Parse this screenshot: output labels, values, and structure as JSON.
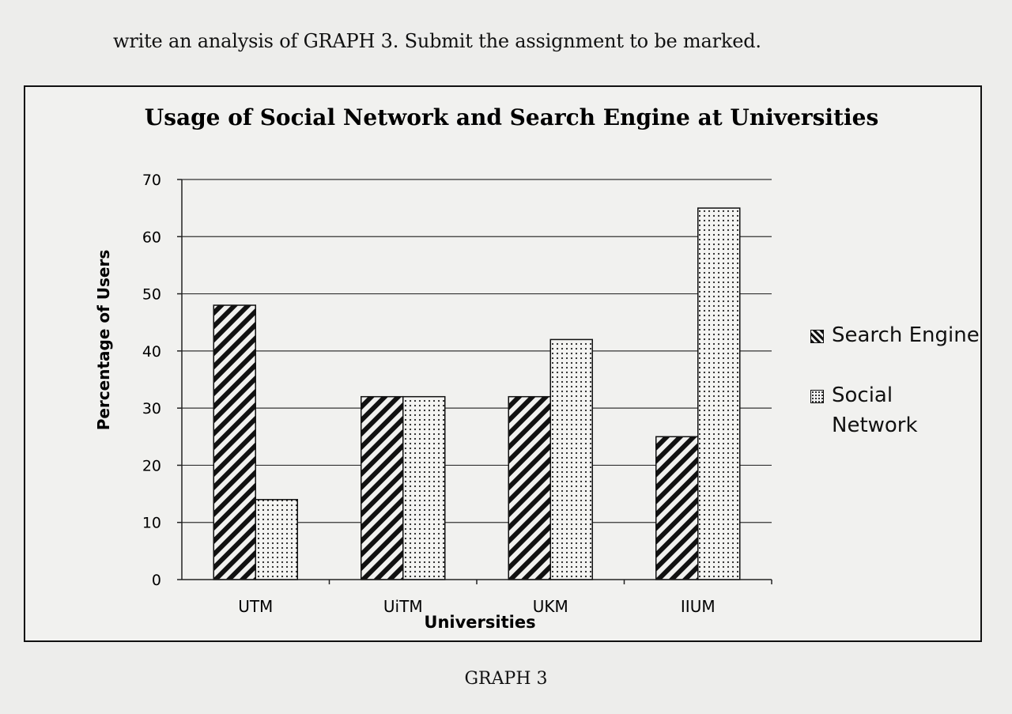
{
  "instruction": "write an analysis of GRAPH 3. Submit the assignment to be marked.",
  "caption": "GRAPH 3",
  "chart_data": {
    "type": "bar",
    "title": "Usage of Social Network and Search Engine at Universities",
    "xlabel": "Universities",
    "ylabel": "Percentage of Users",
    "categories": [
      "UTM",
      "UiTM",
      "UKM",
      "IIUM"
    ],
    "series": [
      {
        "name": "Search Engine",
        "values": [
          48,
          32,
          32,
          25
        ],
        "pattern": "diagonal-hatch",
        "color": "#111111"
      },
      {
        "name": "Social Network",
        "values": [
          14,
          32,
          42,
          65
        ],
        "pattern": "dotted",
        "color": "#222222"
      }
    ],
    "ylim": [
      0,
      70
    ],
    "yticks": [
      0,
      10,
      20,
      30,
      40,
      50,
      60,
      70
    ],
    "grid": true,
    "legend_position": "right"
  }
}
